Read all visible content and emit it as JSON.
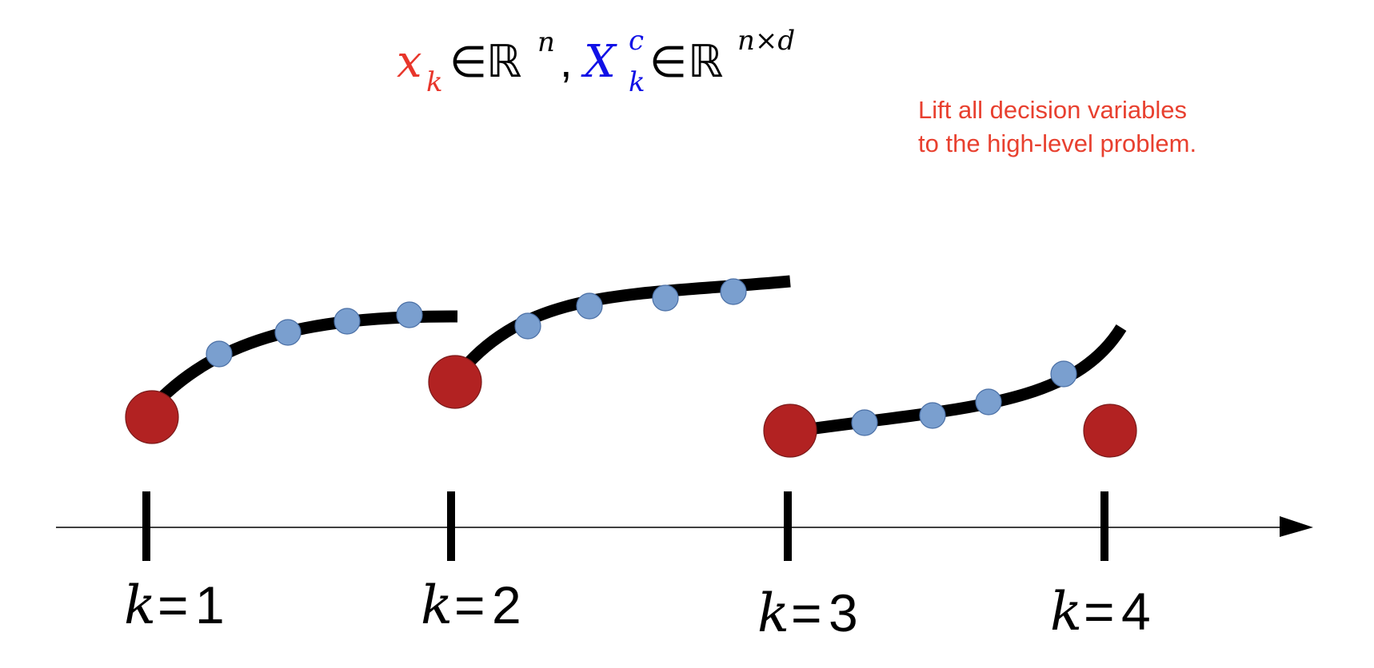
{
  "header_formula": {
    "x_symbol": "x",
    "x_subscript": "k",
    "element_of": "∈",
    "real_set": "ℝ",
    "x_exponent": "n",
    "separator": ",",
    "X_symbol": "X",
    "X_superscript": "c",
    "X_subscript": "k",
    "X_exponent": "n×d",
    "x_color": "#e8362b",
    "X_color": "#1010e6"
  },
  "annotation": {
    "line1": "Lift all decision variables",
    "line2": "to the high-level problem.",
    "color": "#e8402f"
  },
  "colors": {
    "state_node": "#b22222",
    "collocation_node": "#7a9fcf",
    "trajectory": "#000000",
    "axis": "#000000"
  },
  "axis": {
    "direction": "right",
    "arrowhead": "filled-triangle"
  },
  "time_steps": [
    {
      "var": "k",
      "eq": "=",
      "num": "1"
    },
    {
      "var": "k",
      "eq": "=",
      "num": "2"
    },
    {
      "var": "k",
      "eq": "=",
      "num": "3"
    },
    {
      "var": "k",
      "eq": "=",
      "num": "4"
    }
  ],
  "intervals": [
    {
      "from_step": 1,
      "collocation_points": 4
    },
    {
      "from_step": 2,
      "collocation_points": 4
    },
    {
      "from_step": 3,
      "collocation_points": 4
    }
  ],
  "terminal_state_step": 4
}
